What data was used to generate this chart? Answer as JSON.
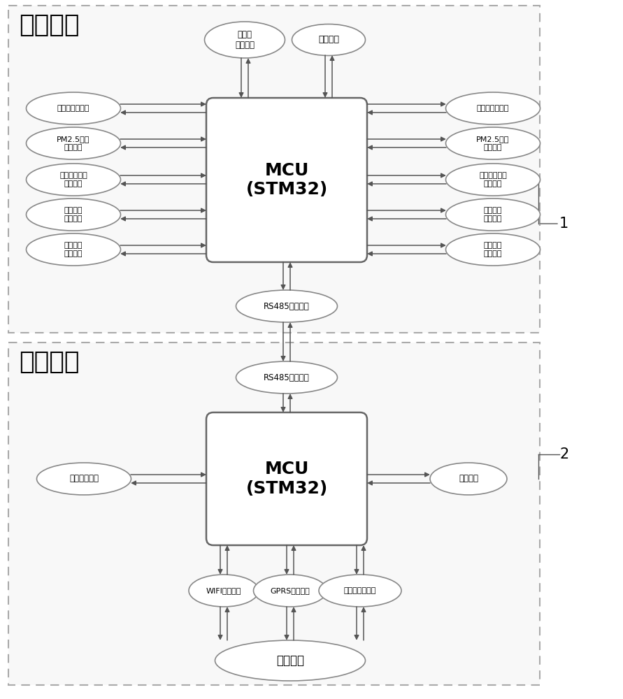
{
  "fig_width": 8.91,
  "fig_height": 10.0,
  "bg_color": "#ffffff",
  "dashed_border_color": "#aaaaaa",
  "box_bg": "#ffffff",
  "box_border": "#666666",
  "ellipse_bg": "#ffffff",
  "ellipse_border": "#888888",
  "arrow_color": "#555555",
  "text_color": "#000000",
  "section1_label": "电控组件",
  "section2_label": "线控组件",
  "label1": "1",
  "label2": "2",
  "mcu1_text": "MCU\n(STM32)",
  "mcu2_text": "MCU\n(STM32)",
  "top_ellipses_1": [
    "微压差\n感应装置",
    "控制模块"
  ],
  "left_ellipses_1": [
    "温湿度感应装置",
    "PM2.5含量\n感应装置",
    "二氧化碳含量\n感应装置",
    "空气异味\n感应装置",
    "甲醛含量\n感应装置"
  ],
  "right_ellipses_1": [
    "温湿度感应装置",
    "PM2.5含量\n感应装置",
    "二氧化碳含量\n感应装置",
    "空气异味\n感应装置",
    "甲醛含量\n感应装置"
  ],
  "rs485_1": "RS485通讯模块",
  "rs485_2": "RS485通讯模块",
  "left_ellipse_2": "人机交互模块",
  "right_ellipse_2": "显示模块",
  "bottom_ellipses_2": [
    "WIFI通讯模块",
    "GPRS通讯模块",
    "以太网通讯模块"
  ],
  "cloud": "云服务器"
}
